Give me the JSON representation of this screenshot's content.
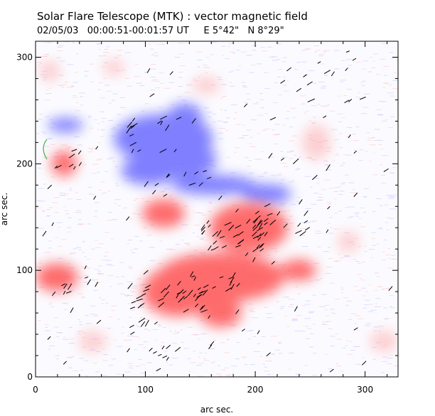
{
  "header": {
    "title": "Solar Flare Telescope (MTK) : vector magnetic field",
    "subtitle": "02/05/03   00:00:51-00:01:57 UT     E 5°42\"   N 8°29\""
  },
  "axes": {
    "xlabel": "arc sec.",
    "ylabel": "arc sec.",
    "xlim": [
      0,
      330
    ],
    "ylim": [
      0,
      315
    ],
    "xticks": [
      "0",
      "100",
      "200",
      "300"
    ],
    "xtick_values": [
      0,
      100,
      200,
      300
    ],
    "yticks": [
      "0",
      "100",
      "200",
      "300"
    ],
    "ytick_values": [
      0,
      100,
      200,
      300
    ]
  },
  "colors": {
    "positive": "#ff5a5a",
    "negative": "#6464ff",
    "vector": "#000000",
    "contour": "#4caf50"
  }
}
